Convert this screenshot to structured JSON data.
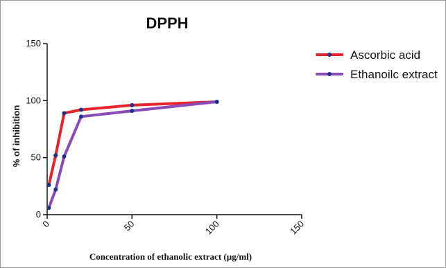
{
  "chart_data": {
    "type": "line",
    "title": "DPPH",
    "xlabel": "Concentration of ethanolic extract (µg/ml)",
    "ylabel": "% of inhibition",
    "xlim": [
      0,
      150
    ],
    "ylim": [
      0,
      150
    ],
    "xticks": [
      "0",
      "50",
      "100",
      "150"
    ],
    "yticks": [
      "0",
      "50",
      "100",
      "150"
    ],
    "grid": false,
    "legend_position": "top-right",
    "series": [
      {
        "name": "Ascorbic acid",
        "color": "#e8242b",
        "marker_color": "#1f2f8c",
        "x": [
          1,
          5,
          10,
          20,
          50,
          100
        ],
        "y": [
          26,
          52,
          89,
          92,
          96,
          99
        ]
      },
      {
        "name": "Ethanoilc extract",
        "color": "#8a4bb8",
        "marker_color": "#1f2f8c",
        "x": [
          1,
          5,
          10,
          20,
          50,
          100
        ],
        "y": [
          6,
          22,
          51,
          86,
          91,
          99
        ]
      }
    ]
  }
}
